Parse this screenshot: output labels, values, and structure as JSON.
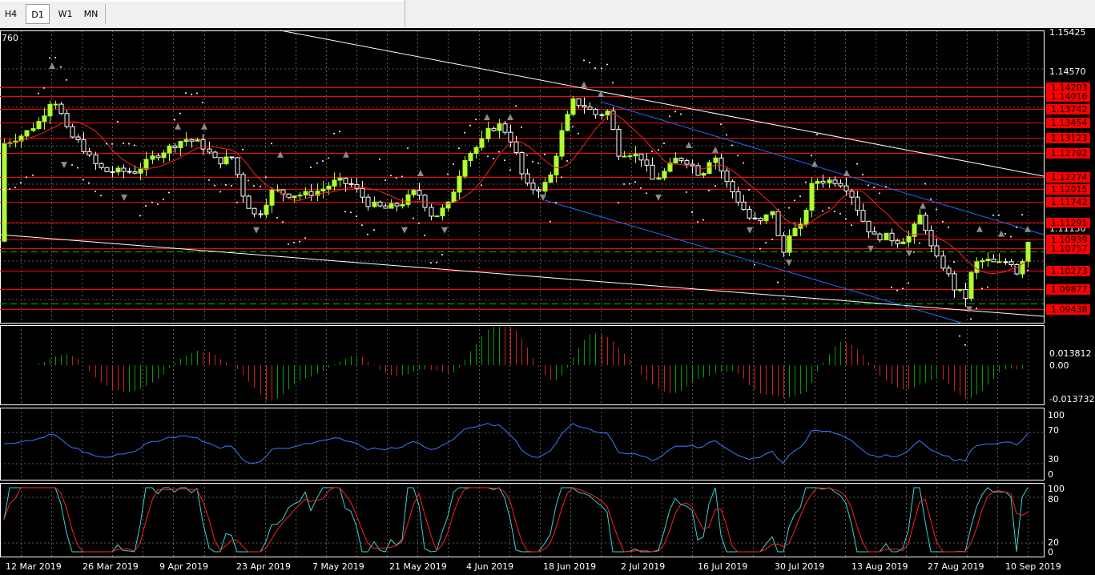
{
  "toolbar": {
    "tabs": [
      {
        "label": "H4",
        "active": false
      },
      {
        "label": "D1",
        "active": true
      },
      {
        "label": "W1",
        "active": false
      },
      {
        "label": "MN",
        "active": false
      }
    ]
  },
  "chart": {
    "corner_label": "760",
    "price_scale": [
      "1.15425",
      "1.14570",
      "1.11130"
    ],
    "level_labels": [
      "1.14203",
      "1.14016",
      "1.13742",
      "1.13454",
      "1.13123",
      "1.12792",
      "1.12274",
      "1.12015",
      "1.11742",
      "1.11291",
      "1.10939",
      "1.10757",
      "1.10273",
      "1.09877",
      "1.09438"
    ],
    "macd_scale": [
      "0.013812",
      "0.00",
      "-0.013732"
    ],
    "rsi_scale": [
      "100",
      "70",
      "30",
      "0"
    ],
    "stoch_scale": [
      "100",
      "80",
      "20",
      "0"
    ],
    "dates": [
      "12 Mar 2019",
      "26 Mar 2019",
      "9 Apr 2019",
      "23 Apr 2019",
      "7 May 2019",
      "21 May 2019",
      "4 Jun 2019",
      "18 Jun 2019",
      "2 Jul 2019",
      "16 Jul 2019",
      "30 Jul 2019",
      "13 Aug 2019",
      "27 Aug 2019",
      "10 Sep 2019"
    ],
    "colors": {
      "background": "#000000",
      "grid": "#5a5a5a",
      "bull_candle": "#adff2f",
      "bear_candle": "#ffffff",
      "level_line": "#ff0000",
      "level_box": "#ff0000",
      "channel": "#1e6fff",
      "trendline": "#ffffff",
      "ma": "#ff2020",
      "rsi": "#3a7bff",
      "stoch_main": "#40d0d0",
      "stoch_signal": "#ff2020",
      "hist_up": "#00a000",
      "hist_down": "#d02020"
    }
  }
}
